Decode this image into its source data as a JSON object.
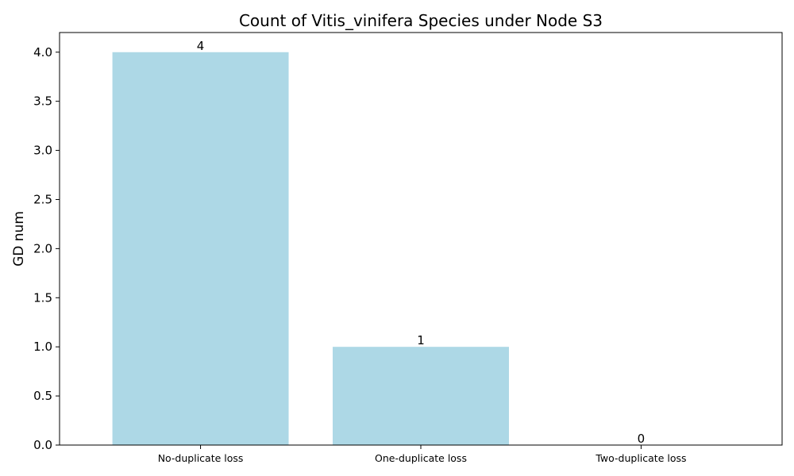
{
  "chart_data": {
    "type": "bar",
    "title": "Count of Vitis_vinifera Species under Node S3",
    "xlabel": "",
    "ylabel": "GD num",
    "categories": [
      "No-duplicate loss",
      "One-duplicate loss",
      "Two-duplicate loss"
    ],
    "values": [
      4,
      1,
      0
    ],
    "data_labels": [
      "4",
      "1",
      "0"
    ],
    "ylim": [
      0,
      4.2
    ],
    "yticks": [
      0.0,
      0.5,
      1.0,
      1.5,
      2.0,
      2.5,
      3.0,
      3.5,
      4.0
    ],
    "ytick_labels": [
      "0.0",
      "0.5",
      "1.0",
      "1.5",
      "2.0",
      "2.5",
      "3.0",
      "3.5",
      "4.0"
    ],
    "bar_color": "#add8e6",
    "grid": false,
    "legend": "none"
  }
}
